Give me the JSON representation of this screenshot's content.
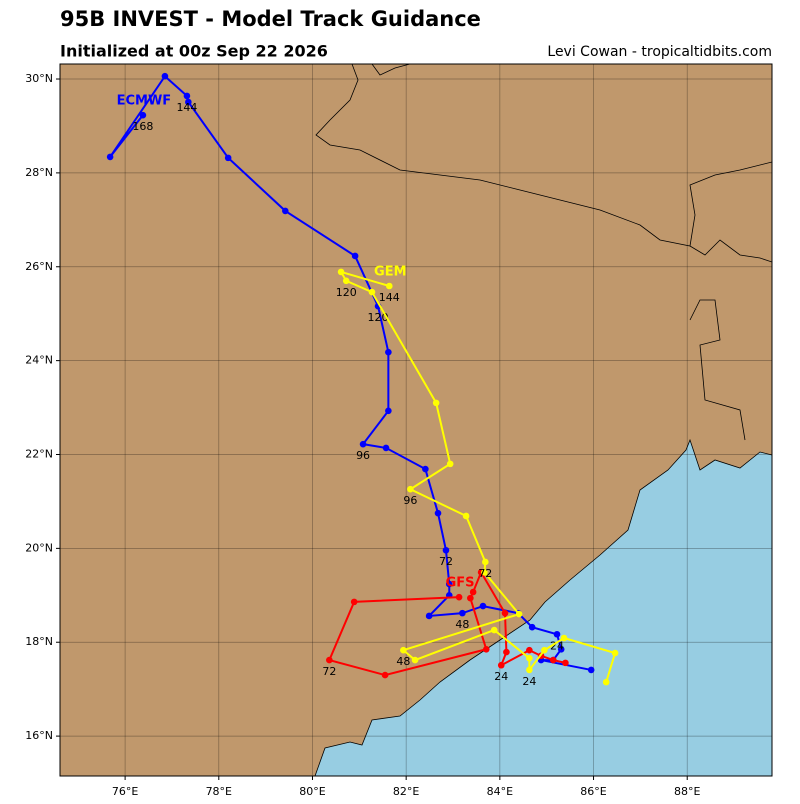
{
  "chart_data": {
    "type": "line",
    "title": "95B INVEST - Model Track Guidance",
    "subtitle": "Initialized at 00z Sep 22 2026",
    "credit": "Levi Cowan - tropicaltidbits.com",
    "xlim": [
      74.61,
      89.81
    ],
    "ylim": [
      15.15,
      30.32
    ],
    "xticks": [
      {
        "value": 76,
        "label": "76°E"
      },
      {
        "value": 78,
        "label": "78°E"
      },
      {
        "value": 80,
        "label": "80°E"
      },
      {
        "value": 82,
        "label": "82°E"
      },
      {
        "value": 84,
        "label": "84°E"
      },
      {
        "value": 86,
        "label": "86°E"
      },
      {
        "value": 88,
        "label": "88°E"
      }
    ],
    "yticks": [
      {
        "value": 16,
        "label": "16°N"
      },
      {
        "value": 18,
        "label": "18°N"
      },
      {
        "value": 20,
        "label": "20°N"
      },
      {
        "value": 22,
        "label": "22°N"
      },
      {
        "value": 24,
        "label": "24°N"
      },
      {
        "value": 26,
        "label": "26°N"
      },
      {
        "value": 28,
        "label": "28°N"
      },
      {
        "value": 30,
        "label": "30°N"
      }
    ],
    "grid": true,
    "land_color": "#c0986c",
    "ocean_color": "#97cde2",
    "series": [
      {
        "name": "ECMWF",
        "color": "#0000ff",
        "x": [
          85.95,
          84.88,
          85.14,
          85.31,
          85.22,
          84.69,
          84.39,
          83.64,
          83.2,
          82.49,
          82.92,
          82.92,
          82.85,
          82.68,
          82.41,
          81.57,
          81.08,
          81.62,
          81.62,
          81.4,
          80.91,
          79.42,
          78.2,
          77.35,
          77.32,
          76.85,
          75.68,
          76.38
        ],
        "values": [
          17.41,
          17.62,
          17.62,
          17.85,
          18.17,
          18.32,
          18.62,
          18.77,
          18.62,
          18.56,
          19.0,
          19.24,
          19.96,
          20.75,
          21.69,
          22.14,
          22.22,
          22.93,
          24.18,
          25.16,
          26.23,
          27.19,
          28.32,
          29.51,
          29.64,
          30.06,
          28.34,
          29.23
        ],
        "hour_labels": [
          null,
          null,
          null,
          null,
          "24",
          null,
          null,
          null,
          "48",
          null,
          null,
          null,
          "72",
          null,
          null,
          null,
          "96",
          null,
          null,
          "120",
          null,
          null,
          null,
          null,
          "144",
          null,
          null,
          "168"
        ]
      },
      {
        "name": "GFS",
        "color": "#ff0000",
        "x": [
          85.4,
          85.14,
          84.88,
          84.63,
          84.03,
          84.14,
          84.11,
          83.6,
          83.43,
          83.37,
          83.71,
          81.55,
          80.36,
          80.89,
          83.13
        ],
        "values": [
          17.56,
          17.62,
          17.71,
          17.83,
          17.51,
          17.79,
          18.62,
          19.49,
          19.07,
          18.94,
          17.85,
          17.3,
          17.62,
          18.86,
          18.96
        ],
        "hour_labels": [
          null,
          null,
          null,
          null,
          "24",
          null,
          null,
          null,
          null,
          null,
          null,
          null,
          "72",
          null,
          null
        ]
      },
      {
        "name": "GEM",
        "color": "#ffff00",
        "x": [
          86.27,
          86.46,
          85.37,
          84.95,
          84.63,
          84.63,
          83.88,
          82.19,
          81.94,
          84.41,
          83.67,
          83.69,
          83.28,
          82.09,
          82.94,
          82.64,
          81.27,
          80.72,
          80.61,
          81.64
        ],
        "values": [
          17.15,
          17.77,
          18.09,
          17.83,
          17.41,
          17.66,
          18.26,
          17.62,
          17.83,
          18.6,
          19.49,
          19.71,
          20.69,
          21.26,
          21.8,
          23.1,
          25.46,
          25.7,
          25.89,
          25.59
        ],
        "hour_labels": [
          null,
          null,
          null,
          null,
          "24",
          null,
          null,
          null,
          "48",
          null,
          null,
          "72",
          null,
          "96",
          null,
          null,
          null,
          "120",
          null,
          "144"
        ]
      }
    ]
  }
}
